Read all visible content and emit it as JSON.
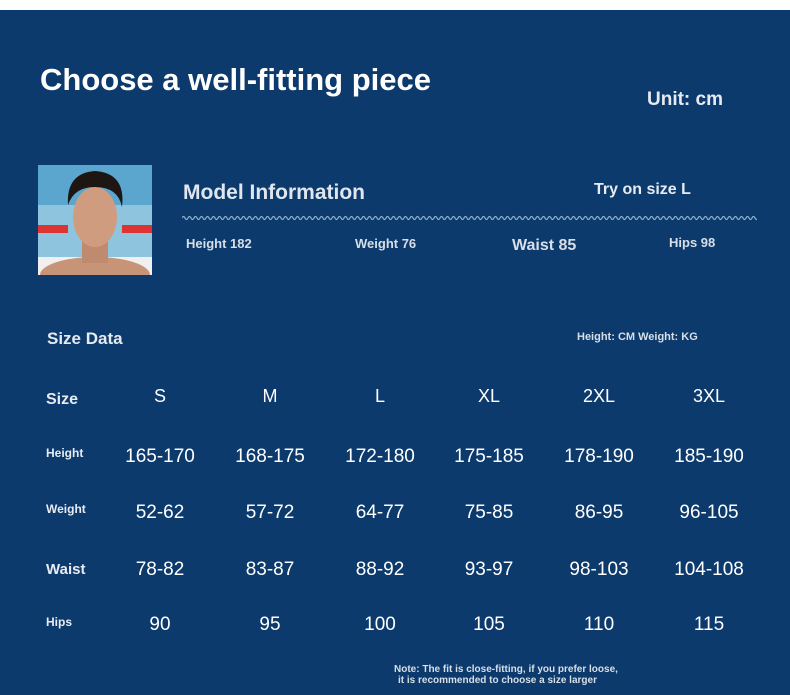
{
  "header": {
    "title": "Choose a well-fitting piece",
    "unit": "Unit: cm"
  },
  "model": {
    "heading": "Model Information",
    "size": "Try on size L",
    "stats": [
      "Height 182",
      "Weight 76",
      "Waist 85",
      "Hips 98"
    ]
  },
  "size_data": {
    "title": "Size Data",
    "units": "Height: CM Weight: KG",
    "header": [
      "Size",
      "S",
      "M",
      "L",
      "XL",
      "2XL",
      "3XL"
    ],
    "rows": [
      [
        "Height",
        "165-170",
        "168-175",
        "172-180",
        "175-185",
        "178-190",
        "185-190"
      ],
      [
        "Weight",
        "52-62",
        "57-72",
        "64-77",
        "75-85",
        "86-95",
        "96-105"
      ],
      [
        "Waist",
        "78-82",
        "83-87",
        "88-92",
        "93-97",
        "98-103",
        "104-108"
      ],
      [
        "Hips",
        "90",
        "95",
        "100",
        "105",
        "110",
        "115"
      ]
    ]
  },
  "note": [
    "Note: The fit is close-fitting, if you prefer loose,",
    "it is recommended to choose a size larger"
  ]
}
